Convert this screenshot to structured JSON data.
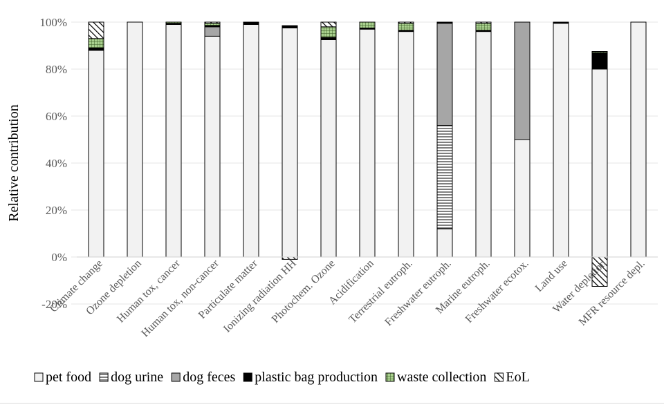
{
  "chart_data": {
    "type": "stacked_bar",
    "y_label": "Relative contribution",
    "categories": [
      "Climate change",
      "Ozone depletion",
      "Human tox, cancer",
      "Human tox, non-cancer",
      "Particulate matter",
      "Ionizing radiation HH",
      "Photochem. Ozone",
      "Acidification",
      "Terrestrial eutroph.",
      "Freshwater eutroph.",
      "Marine eutroph.",
      "Freshwater ecotox.",
      "Land use",
      "Water depletion",
      "MFR resource depl."
    ],
    "series": [
      {
        "name": "pet food",
        "color": "#f2f2f2",
        "pattern": "solid",
        "values": [
          88,
          100,
          99,
          94,
          99,
          97.5,
          92.5,
          97,
          96,
          12,
          96,
          50,
          99.5,
          80,
          100
        ]
      },
      {
        "name": "dog urine",
        "color": "#000000",
        "pattern": "horizontal",
        "values": [
          0,
          0,
          0,
          0,
          0,
          0,
          0,
          0,
          0,
          44,
          0,
          0,
          0,
          0,
          0
        ]
      },
      {
        "name": "dog feces",
        "color": "#a6a6a6",
        "pattern": "solid",
        "values": [
          0,
          0,
          0,
          4,
          0,
          0,
          0,
          0,
          0,
          43.5,
          0,
          50,
          0,
          0,
          0
        ]
      },
      {
        "name": "plastic bag production",
        "color": "#000000",
        "pattern": "solid",
        "values": [
          1,
          0,
          0.5,
          0.5,
          1,
          1,
          1,
          0.5,
          0.5,
          0.5,
          0.5,
          0,
          0.5,
          7,
          0
        ]
      },
      {
        "name": "waste collection",
        "color": "#548235",
        "pattern": "grid",
        "values": [
          4,
          0,
          0.5,
          1,
          0,
          0,
          4.5,
          2.5,
          3,
          0,
          3,
          0,
          0,
          0.5,
          0
        ]
      },
      {
        "name": "EoL",
        "color": "#000000",
        "pattern": "diagonal",
        "values": [
          7,
          0,
          0,
          0.5,
          0,
          -1,
          2,
          0,
          0.5,
          0,
          0.5,
          0,
          0,
          -12.5,
          0
        ]
      }
    ],
    "ylim": [
      -20,
      100
    ],
    "yticks": [
      {
        "value": -20,
        "label": "-20%"
      },
      {
        "value": 0,
        "label": "0%"
      },
      {
        "value": 20,
        "label": "20%"
      },
      {
        "value": 40,
        "label": "40%"
      },
      {
        "value": 60,
        "label": "60%"
      },
      {
        "value": 80,
        "label": "80%"
      },
      {
        "value": 100,
        "label": "100%"
      }
    ],
    "grid": true,
    "legend": "bottom"
  }
}
